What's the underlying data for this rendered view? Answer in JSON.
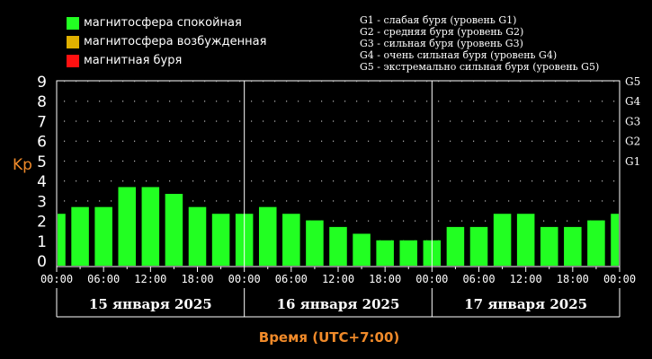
{
  "legend": [
    {
      "label": "магнитосфера спокойная",
      "color": "#22ff22"
    },
    {
      "label": "магнитосфера возбужденная",
      "color": "#e0b000"
    },
    {
      "label": "магнитная буря",
      "color": "#ff1111"
    }
  ],
  "storm_legend": [
    "G1 - слабая буря (уровень G1)",
    "G2 - средняя буря (уровень G2)",
    "G3 - сильная буря (уровень G3)",
    "G4 - очень сильная буря (уровень G4)",
    "G5 - экстремально сильная буря (уровень G5)"
  ],
  "chart_data": {
    "type": "bar",
    "ylabel": "Kp",
    "xlabel": "Время (UTC+7:00)",
    "ylim": [
      0,
      9
    ],
    "y_ticks": [
      0,
      1,
      2,
      3,
      4,
      5,
      6,
      7,
      8,
      9
    ],
    "g_levels": [
      {
        "label": "G1",
        "value": 5
      },
      {
        "label": "G2",
        "value": 6
      },
      {
        "label": "G3",
        "value": 7
      },
      {
        "label": "G4",
        "value": 8
      },
      {
        "label": "G5",
        "value": 9
      }
    ],
    "x_ticks": [
      "00:00",
      "06:00",
      "12:00",
      "18:00",
      "00:00",
      "06:00",
      "12:00",
      "18:00",
      "00:00",
      "06:00",
      "12:00",
      "18:00",
      "00:00"
    ],
    "days": [
      "15 января 2025",
      "16 января 2025",
      "17 января 2025"
    ],
    "interval_hours": 3,
    "values": [
      2.33,
      2.67,
      2.67,
      3.67,
      3.67,
      3.33,
      2.67,
      2.33,
      2.33,
      2.67,
      2.33,
      2.0,
      1.67,
      1.33,
      1.0,
      1.0,
      1.0,
      1.67,
      1.67,
      2.33,
      2.33,
      1.67,
      1.67,
      2.0,
      2.33
    ],
    "bar_color": "#22ff22",
    "grid": true
  }
}
